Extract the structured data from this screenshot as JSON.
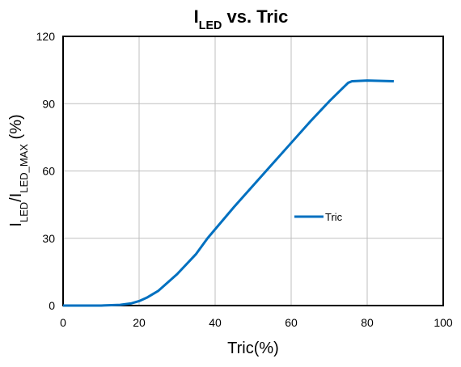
{
  "chart_data": {
    "type": "line",
    "title": [
      {
        "text": "I"
      },
      {
        "text": "LED",
        "sub": true
      },
      {
        "text": " vs. Tric"
      }
    ],
    "x_label": [
      {
        "text": "Tric(%)"
      }
    ],
    "y_label": [
      {
        "text": "I"
      },
      {
        "text": "LED",
        "sub": true
      },
      {
        "text": "/I"
      },
      {
        "text": "LED_MAX",
        "sub": true
      },
      {
        "text": " (%)"
      }
    ],
    "x": [
      0,
      10,
      15,
      18,
      20,
      22,
      25,
      30,
      35,
      38,
      40,
      45,
      50,
      55,
      60,
      65,
      70,
      73,
      75,
      76,
      80,
      85,
      87
    ],
    "series": [
      {
        "name": "Tric",
        "color": "#0070c0",
        "values": [
          0,
          0,
          0.3,
          1,
          2,
          3.5,
          6.5,
          14,
          23,
          30,
          34,
          44,
          53.5,
          63,
          72.5,
          82,
          91,
          96,
          99.3,
          100,
          100.3,
          100.1,
          100
        ]
      }
    ],
    "xlim": [
      0,
      100
    ],
    "xticks": [
      0,
      20,
      40,
      60,
      80,
      100
    ],
    "ylim": [
      0,
      120
    ],
    "yticks": [
      0,
      30,
      60,
      90,
      120
    ],
    "grid": true,
    "legend": "center"
  }
}
